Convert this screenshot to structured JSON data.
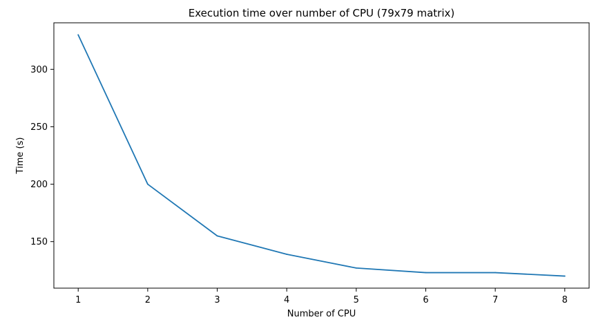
{
  "chart_data": {
    "type": "line",
    "title": "Execution time over number of CPU (79x79 matrix)",
    "xlabel": "Number of CPU",
    "ylabel": "Time (s)",
    "x": [
      1,
      2,
      3,
      4,
      5,
      6,
      7,
      8
    ],
    "series": [
      {
        "values": [
          330,
          200,
          155,
          139,
          127,
          123,
          123,
          120
        ],
        "color": "#1f77b4"
      }
    ],
    "xticks": [
      "1",
      "2",
      "3",
      "4",
      "5",
      "6",
      "7",
      "8"
    ],
    "yticks": [
      "150",
      "200",
      "250",
      "300"
    ],
    "xlim": [
      0.65,
      8.35
    ],
    "ylim": [
      109.5,
      340.5
    ],
    "grid": false
  }
}
